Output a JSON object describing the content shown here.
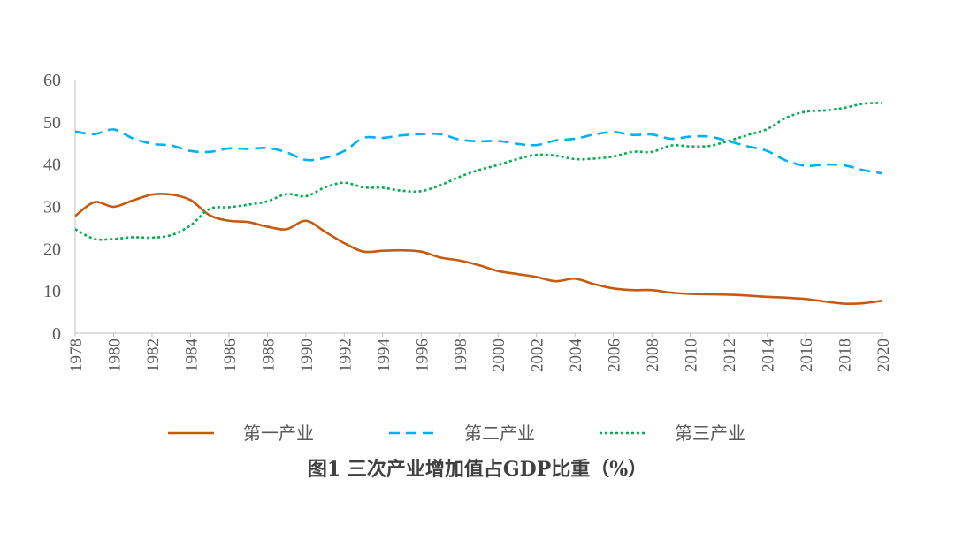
{
  "chart_data": {
    "type": "line",
    "title": "图1  三次产业增加值占GDP比重（%）",
    "xlabel": "",
    "ylabel": "",
    "ylim": [
      0,
      60
    ],
    "yticks": [
      0,
      10,
      20,
      30,
      40,
      50,
      60
    ],
    "xlim": [
      1978,
      2020
    ],
    "x_tick_labels": [
      "1978",
      "1980",
      "1982",
      "1984",
      "1986",
      "1988",
      "1990",
      "1992",
      "1994",
      "1996",
      "1998",
      "2000",
      "2002",
      "2004",
      "2006",
      "2008",
      "2010",
      "2012",
      "2014",
      "2016",
      "2018",
      "2020"
    ],
    "grid": false,
    "legend_position": "bottom",
    "x": [
      1978,
      1979,
      1980,
      1981,
      1982,
      1983,
      1984,
      1985,
      1986,
      1987,
      1988,
      1989,
      1990,
      1991,
      1992,
      1993,
      1994,
      1995,
      1996,
      1997,
      1998,
      1999,
      2000,
      2001,
      2002,
      2003,
      2004,
      2005,
      2006,
      2007,
      2008,
      2009,
      2010,
      2011,
      2012,
      2013,
      2014,
      2015,
      2016,
      2017,
      2018,
      2019,
      2020
    ],
    "series": [
      {
        "name": "第一产业",
        "color": "#C55A11",
        "style": "solid",
        "values": [
          27.7,
          31.0,
          29.9,
          31.4,
          32.8,
          32.8,
          31.5,
          27.9,
          26.6,
          26.3,
          25.2,
          24.6,
          26.6,
          24.0,
          21.3,
          19.3,
          19.5,
          19.6,
          19.3,
          17.9,
          17.2,
          16.1,
          14.7,
          14.0,
          13.3,
          12.3,
          12.9,
          11.6,
          10.6,
          10.2,
          10.2,
          9.6,
          9.3,
          9.2,
          9.1,
          8.9,
          8.6,
          8.4,
          8.1,
          7.5,
          7.0,
          7.1,
          7.7
        ]
      },
      {
        "name": "第二产业",
        "color": "#00B0F0",
        "style": "dashed",
        "values": [
          47.7,
          47.1,
          48.2,
          46.1,
          44.8,
          44.4,
          43.1,
          42.9,
          43.7,
          43.6,
          43.8,
          42.8,
          41.0,
          41.5,
          43.1,
          46.2,
          46.2,
          46.8,
          47.1,
          47.1,
          45.8,
          45.4,
          45.5,
          44.8,
          44.5,
          45.6,
          46.0,
          47.0,
          47.6,
          46.9,
          47.0,
          46.0,
          46.5,
          46.5,
          45.4,
          44.2,
          43.1,
          40.8,
          39.6,
          39.9,
          39.7,
          38.6,
          37.8
        ]
      },
      {
        "name": "第三产业",
        "color": "#00B050",
        "style": "dotted",
        "values": [
          24.6,
          22.3,
          22.3,
          22.7,
          22.6,
          23.2,
          25.5,
          29.4,
          29.8,
          30.4,
          31.2,
          32.9,
          32.4,
          34.5,
          35.6,
          34.5,
          34.4,
          33.7,
          33.6,
          35.0,
          37.0,
          38.6,
          39.8,
          41.2,
          42.2,
          42.0,
          41.2,
          41.3,
          41.8,
          42.9,
          42.9,
          44.4,
          44.2,
          44.3,
          45.5,
          46.9,
          48.3,
          51.0,
          52.4,
          52.7,
          53.3,
          54.3,
          54.5
        ]
      }
    ]
  }
}
